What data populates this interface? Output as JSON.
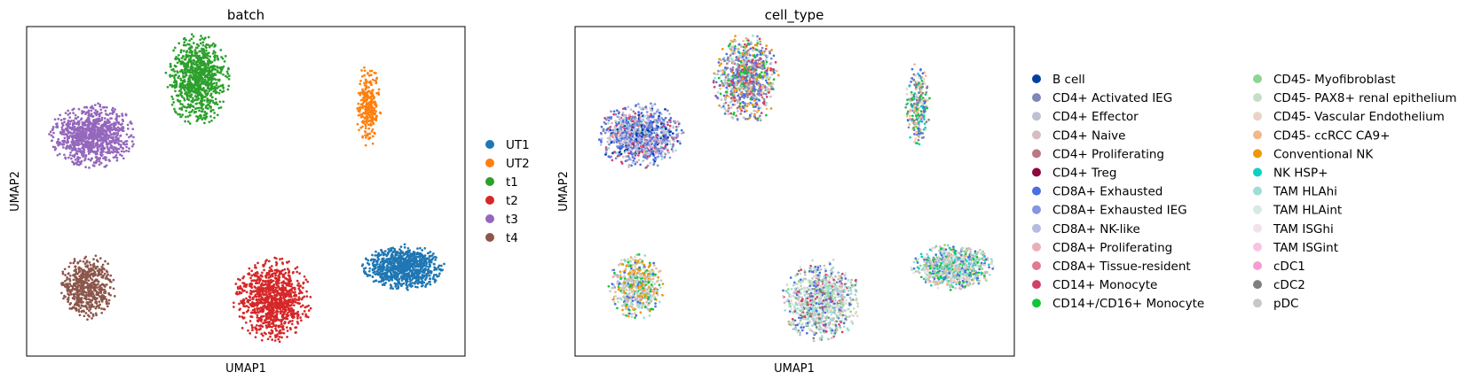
{
  "chart_data": [
    {
      "type": "scatter",
      "title": "batch",
      "xlabel": "UMAP1",
      "ylabel": "UMAP2",
      "grid": false,
      "axis_ticks": false,
      "legend_placement": "right",
      "legend_columns": 1,
      "xlim": [
        0,
        100
      ],
      "ylim": [
        0,
        100
      ],
      "series": [
        {
          "name": "UT1",
          "color": "#1f77b4",
          "cluster": {
            "cx": 86,
            "cy": 27,
            "rx": 9.5,
            "ry": 7,
            "n": 900
          }
        },
        {
          "name": "UT2",
          "color": "#ff7f0e",
          "cluster": {
            "cx": 78,
            "cy": 76,
            "rx": 2.8,
            "ry": 13,
            "n": 280
          }
        },
        {
          "name": "t1",
          "color": "#2ca02c",
          "cluster": {
            "cx": 39,
            "cy": 84,
            "rx": 7.5,
            "ry": 14,
            "n": 900
          }
        },
        {
          "name": "t2",
          "color": "#d62728",
          "cluster": {
            "cx": 56,
            "cy": 17,
            "rx": 9,
            "ry": 13,
            "n": 1000
          }
        },
        {
          "name": "t3",
          "color": "#9467bd",
          "cluster": {
            "cx": 15,
            "cy": 67,
            "rx": 10,
            "ry": 10,
            "n": 1000
          }
        },
        {
          "name": "t4",
          "color": "#8c564b",
          "cluster": {
            "cx": 14,
            "cy": 21,
            "rx": 6.5,
            "ry": 10,
            "n": 550
          }
        }
      ]
    },
    {
      "type": "scatter",
      "title": "cell_type",
      "xlabel": "UMAP1",
      "ylabel": "UMAP2",
      "grid": false,
      "axis_ticks": false,
      "legend_placement": "right",
      "legend_columns": 2,
      "xlim": [
        0,
        100
      ],
      "ylim": [
        0,
        100
      ],
      "clusters": [
        {
          "cx": 86,
          "cy": 27,
          "rx": 9.5,
          "ry": 7,
          "n": 900,
          "mix": [
            "CD4+ Effector",
            "CD8A+ Exhausted",
            "CD14+/CD16+ Monocyte",
            "CD45- Myofibroblast",
            "TAM HLAhi",
            "TAM HLAint",
            "CD45- Vascular Endothelium",
            "NK HSP+",
            "CD45- ccRCC CA9+",
            "CD4+ Naive"
          ]
        },
        {
          "cx": 78,
          "cy": 76,
          "rx": 2.8,
          "ry": 13,
          "n": 280,
          "mix": [
            "CD45- ccRCC CA9+",
            "CD14+/CD16+ Monocyte",
            "CD45- Vascular Endothelium",
            "CD4+ Activated IEG",
            "CD8A+ Exhausted",
            "NK HSP+",
            "cDC2"
          ]
        },
        {
          "cx": 39,
          "cy": 84,
          "rx": 7.5,
          "ry": 14,
          "n": 900,
          "mix": [
            "CD8A+ Exhausted",
            "CD4+ Activated IEG",
            "CD14+ Monocyte",
            "CD14+/CD16+ Monocyte",
            "CD45- ccRCC CA9+",
            "Conventional NK",
            "CD4+ Effector",
            "TAM HLAhi",
            "CD4+ Proliferating"
          ]
        },
        {
          "cx": 56,
          "cy": 17,
          "rx": 9,
          "ry": 13,
          "n": 1000,
          "mix": [
            "TAM HLAhi",
            "TAM HLAint",
            "CD45- PAX8+ renal epithelium",
            "CD45- Myofibroblast",
            "CD4+ Effector",
            "CD4+ Naive",
            "CD45- Vascular Endothelium",
            "CD8A+ Exhausted",
            "CD14+ Monocyte",
            "cDC2"
          ]
        },
        {
          "cx": 15,
          "cy": 67,
          "rx": 10,
          "ry": 10,
          "n": 1000,
          "mix": [
            "CD8A+ Exhausted",
            "CD4+ Activated IEG",
            "CD8A+ Exhausted IEG",
            "CD8A+ NK-like",
            "CD14+ Monocyte",
            "CD8A+ Proliferating",
            "B cell",
            "TAM HLAhi",
            "CD4+ Effector"
          ]
        },
        {
          "cx": 14,
          "cy": 21,
          "rx": 6.5,
          "ry": 10,
          "n": 550,
          "mix": [
            "Conventional NK",
            "CD45- ccRCC CA9+",
            "CD14+/CD16+ Monocyte",
            "CD8A+ Exhausted",
            "TAM HLAhi",
            "CD4+ Effector",
            "pDC",
            "CD45- PAX8+ renal epithelium"
          ]
        }
      ],
      "series": [
        {
          "name": "B cell",
          "color": "#023fa5"
        },
        {
          "name": "CD4+ Activated IEG",
          "color": "#7d87b9"
        },
        {
          "name": "CD4+ Effector",
          "color": "#bec1d4"
        },
        {
          "name": "CD4+ Naive",
          "color": "#d6bcc0"
        },
        {
          "name": "CD4+ Proliferating",
          "color": "#bb7784"
        },
        {
          "name": "CD4+ Treg",
          "color": "#8e063b"
        },
        {
          "name": "CD8A+ Exhausted",
          "color": "#4a6fe3"
        },
        {
          "name": "CD8A+ Exhausted IEG",
          "color": "#8595e1"
        },
        {
          "name": "CD8A+ NK-like",
          "color": "#b5bbe3"
        },
        {
          "name": "CD8A+ Proliferating",
          "color": "#e6afb9"
        },
        {
          "name": "CD8A+ Tissue-resident",
          "color": "#e07b91"
        },
        {
          "name": "CD14+ Monocyte",
          "color": "#d33f6a"
        },
        {
          "name": "CD14+/CD16+ Monocyte",
          "color": "#11c638"
        },
        {
          "name": "CD45- Myofibroblast",
          "color": "#8dd593"
        },
        {
          "name": "CD45- PAX8+ renal epithelium",
          "color": "#c6dec7"
        },
        {
          "name": "CD45- Vascular Endothelium",
          "color": "#ead3c6"
        },
        {
          "name": "CD45- ccRCC CA9+",
          "color": "#f0b98d"
        },
        {
          "name": "Conventional NK",
          "color": "#ef9708"
        },
        {
          "name": "NK HSP+",
          "color": "#0fcfc0"
        },
        {
          "name": "TAM HLAhi",
          "color": "#9cded6"
        },
        {
          "name": "TAM HLAint",
          "color": "#d5eae7"
        },
        {
          "name": "TAM ISGhi",
          "color": "#f3e1eb"
        },
        {
          "name": "TAM ISGint",
          "color": "#f6c4e1"
        },
        {
          "name": "cDC1",
          "color": "#f79cd4"
        },
        {
          "name": "cDC2",
          "color": "#7f7f7f"
        },
        {
          "name": "pDC",
          "color": "#c7c7c7"
        }
      ]
    }
  ]
}
